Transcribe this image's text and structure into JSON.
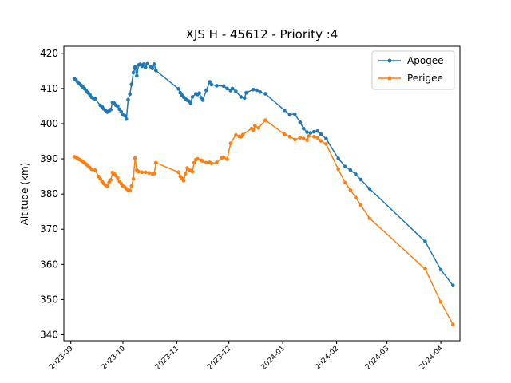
{
  "chart_data": {
    "type": "line",
    "title": "XJS H - 45612 - Priority :4",
    "xlabel": "",
    "ylabel": "Altitude (km)",
    "x_is_date": true,
    "xlim": [
      "2023-08-28",
      "2024-04-12"
    ],
    "ylim": [
      338.3,
      422.0
    ],
    "x_ticks": [
      "2023-09-01",
      "2023-10-01",
      "2023-11-01",
      "2023-12-01",
      "2024-01-01",
      "2024-02-01",
      "2024-03-01",
      "2024-04-01"
    ],
    "x_tick_labels": [
      "2023-09",
      "2023-10",
      "2023-11",
      "2023-12",
      "2024-01",
      "2024-02",
      "2024-03",
      "2024-04"
    ],
    "y_ticks": [
      340,
      350,
      360,
      370,
      380,
      390,
      400,
      410,
      420
    ],
    "grid": false,
    "legend_position": "top-right",
    "series": [
      {
        "name": "Apogee",
        "color": "#1f77b4",
        "points": [
          [
            "2023-09-03",
            412.8
          ],
          [
            "2023-09-04",
            412.4
          ],
          [
            "2023-09-05",
            411.8
          ],
          [
            "2023-09-06",
            411.3
          ],
          [
            "2023-09-07",
            410.9
          ],
          [
            "2023-09-08",
            410.4
          ],
          [
            "2023-09-09",
            409.9
          ],
          [
            "2023-09-10",
            409.3
          ],
          [
            "2023-09-11",
            408.8
          ],
          [
            "2023-09-12",
            408.2
          ],
          [
            "2023-09-13",
            407.5
          ],
          [
            "2023-09-14",
            407.2
          ],
          [
            "2023-09-15",
            407.1
          ],
          [
            "2023-09-18",
            405.2
          ],
          [
            "2023-09-19",
            404.8
          ],
          [
            "2023-09-20",
            404.2
          ],
          [
            "2023-09-21",
            403.8
          ],
          [
            "2023-09-22",
            403.3
          ],
          [
            "2023-09-23",
            403.6
          ],
          [
            "2023-09-24",
            404.0
          ],
          [
            "2023-09-25",
            406.0
          ],
          [
            "2023-09-26",
            405.8
          ],
          [
            "2023-09-27",
            405.2
          ],
          [
            "2023-09-28",
            405.0
          ],
          [
            "2023-09-29",
            404.1
          ],
          [
            "2023-09-30",
            403.4
          ],
          [
            "2023-10-01",
            402.5
          ],
          [
            "2023-10-02",
            402.3
          ],
          [
            "2023-10-03",
            401.3
          ],
          [
            "2023-10-04",
            406.8
          ],
          [
            "2023-10-05",
            408.4
          ],
          [
            "2023-10-06",
            411.2
          ],
          [
            "2023-10-07",
            414.5
          ],
          [
            "2023-10-08",
            415.8
          ],
          [
            "2023-10-08",
            416.1
          ],
          [
            "2023-10-09",
            413.6
          ],
          [
            "2023-10-10",
            416.7
          ],
          [
            "2023-10-11",
            416.9
          ],
          [
            "2023-10-12",
            416.3
          ],
          [
            "2023-10-13",
            416.9
          ],
          [
            "2023-10-14",
            416.0
          ],
          [
            "2023-10-15",
            417.0
          ],
          [
            "2023-10-17",
            416.2
          ],
          [
            "2023-10-18",
            415.7
          ],
          [
            "2023-10-19",
            416.9
          ],
          [
            "2023-10-20",
            415.1
          ],
          [
            "2023-11-02",
            409.9
          ],
          [
            "2023-11-03",
            408.8
          ],
          [
            "2023-11-04",
            408.1
          ],
          [
            "2023-11-05",
            407.5
          ],
          [
            "2023-11-06",
            407.0
          ],
          [
            "2023-11-07",
            406.7
          ],
          [
            "2023-11-08",
            406.4
          ],
          [
            "2023-11-09",
            405.8
          ],
          [
            "2023-11-10",
            407.6
          ],
          [
            "2023-11-12",
            408.5
          ],
          [
            "2023-11-13",
            408.3
          ],
          [
            "2023-11-14",
            408.7
          ],
          [
            "2023-11-15",
            407.4
          ],
          [
            "2023-11-16",
            406.7
          ],
          [
            "2023-11-18",
            409.5
          ],
          [
            "2023-11-20",
            411.9
          ],
          [
            "2023-11-21",
            411.1
          ],
          [
            "2023-11-24",
            410.8
          ],
          [
            "2023-11-28",
            410.7
          ],
          [
            "2023-11-30",
            410.0
          ],
          [
            "2023-12-02",
            409.4
          ],
          [
            "2023-12-03",
            410.0
          ],
          [
            "2023-12-05",
            409.2
          ],
          [
            "2023-12-08",
            407.6
          ],
          [
            "2023-12-10",
            407.3
          ],
          [
            "2023-12-11",
            408.8
          ],
          [
            "2023-12-15",
            409.7
          ],
          [
            "2023-12-17",
            409.5
          ],
          [
            "2023-12-19",
            409.0
          ],
          [
            "2023-12-22",
            408.5
          ],
          [
            "2024-01-02",
            403.8
          ],
          [
            "2024-01-05",
            402.6
          ],
          [
            "2024-01-08",
            402.7
          ],
          [
            "2024-01-11",
            400.4
          ],
          [
            "2024-01-13",
            398.6
          ],
          [
            "2024-01-15",
            397.6
          ],
          [
            "2024-01-17",
            397.4
          ],
          [
            "2024-01-19",
            397.7
          ],
          [
            "2024-01-21",
            397.9
          ],
          [
            "2024-01-23",
            397.0
          ],
          [
            "2024-01-26",
            395.7
          ],
          [
            "2024-02-02",
            390.1
          ],
          [
            "2024-02-06",
            387.8
          ],
          [
            "2024-02-09",
            386.8
          ],
          [
            "2024-02-12",
            385.6
          ],
          [
            "2024-02-15",
            384.1
          ],
          [
            "2024-02-20",
            381.5
          ],
          [
            "2024-03-23",
            366.5
          ],
          [
            "2024-04-01",
            358.5
          ],
          [
            "2024-04-08",
            354.0
          ]
        ]
      },
      {
        "name": "Perigee",
        "color": "#ff7f0e",
        "points": [
          [
            "2023-09-03",
            390.6
          ],
          [
            "2023-09-04",
            390.4
          ],
          [
            "2023-09-05",
            390.1
          ],
          [
            "2023-09-06",
            389.8
          ],
          [
            "2023-09-07",
            389.5
          ],
          [
            "2023-09-08",
            389.2
          ],
          [
            "2023-09-09",
            388.8
          ],
          [
            "2023-09-10",
            388.4
          ],
          [
            "2023-09-11",
            388.0
          ],
          [
            "2023-09-12",
            387.5
          ],
          [
            "2023-09-13",
            387.0
          ],
          [
            "2023-09-15",
            386.8
          ],
          [
            "2023-09-17",
            385.0
          ],
          [
            "2023-09-18",
            384.3
          ],
          [
            "2023-09-19",
            383.6
          ],
          [
            "2023-09-20",
            383.0
          ],
          [
            "2023-09-21",
            382.5
          ],
          [
            "2023-09-22",
            382.2
          ],
          [
            "2023-09-23",
            383.3
          ],
          [
            "2023-09-24",
            384.0
          ],
          [
            "2023-09-25",
            386.1
          ],
          [
            "2023-09-26",
            385.7
          ],
          [
            "2023-09-27",
            385.2
          ],
          [
            "2023-09-28",
            384.6
          ],
          [
            "2023-09-29",
            383.6
          ],
          [
            "2023-09-30",
            383.0
          ],
          [
            "2023-10-01",
            382.3
          ],
          [
            "2023-10-02",
            382.0
          ],
          [
            "2023-10-03",
            381.5
          ],
          [
            "2023-10-04",
            381.1
          ],
          [
            "2023-10-05",
            381.0
          ],
          [
            "2023-10-06",
            382.3
          ],
          [
            "2023-10-07",
            384.3
          ],
          [
            "2023-10-08",
            390.2
          ],
          [
            "2023-10-09",
            386.8
          ],
          [
            "2023-10-10",
            386.4
          ],
          [
            "2023-10-12",
            386.2
          ],
          [
            "2023-10-14",
            386.2
          ],
          [
            "2023-10-16",
            386.0
          ],
          [
            "2023-10-18",
            385.7
          ],
          [
            "2023-10-19",
            385.8
          ],
          [
            "2023-10-20",
            388.9
          ],
          [
            "2023-11-02",
            386.2
          ],
          [
            "2023-11-03",
            385.0
          ],
          [
            "2023-11-04",
            384.5
          ],
          [
            "2023-11-05",
            383.8
          ],
          [
            "2023-11-06",
            385.8
          ],
          [
            "2023-11-07",
            387.4
          ],
          [
            "2023-11-08",
            386.8
          ],
          [
            "2023-11-09",
            386.7
          ],
          [
            "2023-11-10",
            386.4
          ],
          [
            "2023-11-11",
            388.9
          ],
          [
            "2023-11-12",
            389.8
          ],
          [
            "2023-11-13",
            390.0
          ],
          [
            "2023-11-15",
            389.6
          ],
          [
            "2023-11-16",
            389.4
          ],
          [
            "2023-11-18",
            388.9
          ],
          [
            "2023-11-20",
            389.0
          ],
          [
            "2023-11-21",
            388.7
          ],
          [
            "2023-11-24",
            389.0
          ],
          [
            "2023-11-27",
            390.3
          ],
          [
            "2023-11-28",
            390.5
          ],
          [
            "2023-11-30",
            389.9
          ],
          [
            "2023-12-02",
            394.4
          ],
          [
            "2023-12-05",
            396.8
          ],
          [
            "2023-12-07",
            396.4
          ],
          [
            "2023-12-08",
            396.3
          ],
          [
            "2023-12-09",
            396.9
          ],
          [
            "2023-12-14",
            398.6
          ],
          [
            "2023-12-15",
            398.2
          ],
          [
            "2023-12-16",
            399.4
          ],
          [
            "2023-12-18",
            398.8
          ],
          [
            "2023-12-22",
            401.0
          ],
          [
            "2024-01-02",
            397.0
          ],
          [
            "2024-01-05",
            396.3
          ],
          [
            "2024-01-08",
            395.5
          ],
          [
            "2024-01-11",
            396.0
          ],
          [
            "2024-01-13",
            395.8
          ],
          [
            "2024-01-15",
            395.3
          ],
          [
            "2024-01-16",
            396.5
          ],
          [
            "2024-01-19",
            396.3
          ],
          [
            "2024-01-21",
            396.0
          ],
          [
            "2024-01-23",
            395.1
          ],
          [
            "2024-01-26",
            394.2
          ],
          [
            "2024-02-02",
            387.0
          ],
          [
            "2024-02-06",
            383.2
          ],
          [
            "2024-02-09",
            381.1
          ],
          [
            "2024-02-12",
            379.0
          ],
          [
            "2024-02-15",
            376.8
          ],
          [
            "2024-02-20",
            373.1
          ],
          [
            "2024-03-23",
            358.7
          ],
          [
            "2024-04-01",
            349.3
          ],
          [
            "2024-04-08",
            342.9
          ]
        ]
      }
    ]
  }
}
